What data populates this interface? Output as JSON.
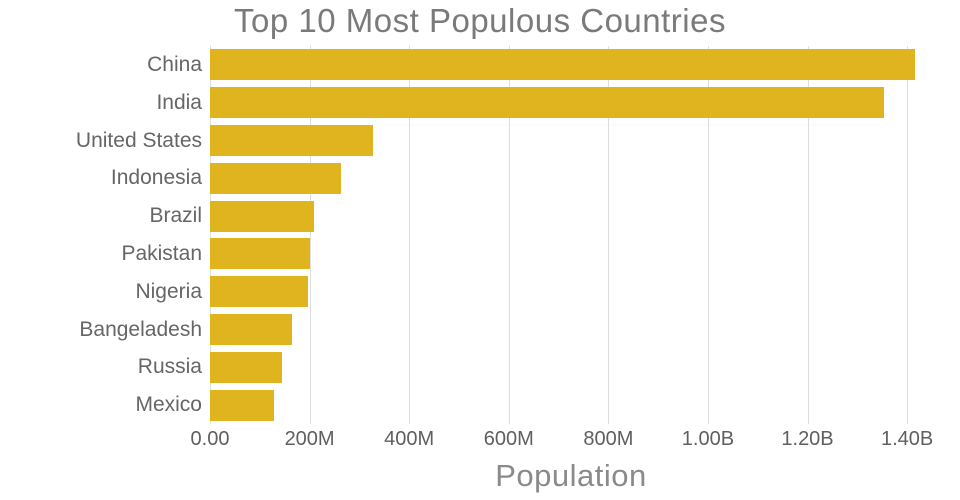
{
  "title": "Top 10 Most Populous Countries",
  "xlabel": "Population",
  "colors": {
    "bar": "#e0b41e",
    "gridline": "#dddddd",
    "title_text": "#7a7a7a",
    "axis_text": "#666666"
  },
  "chart_data": {
    "type": "bar",
    "orientation": "horizontal",
    "title": "Top 10 Most Populous Countries",
    "xlabel": "Population",
    "ylabel": "",
    "grid": true,
    "legend": false,
    "xlim": [
      0,
      1450000000
    ],
    "categories": [
      "China",
      "India",
      "United States",
      "Indonesia",
      "Brazil",
      "Pakistan",
      "Nigeria",
      "Bangeladesh",
      "Russia",
      "Mexico"
    ],
    "values": [
      1415000000,
      1354000000,
      327000000,
      264000000,
      209000000,
      201000000,
      196000000,
      165000000,
      144000000,
      129000000
    ],
    "xticks": [
      {
        "value": 0,
        "label": "0.00"
      },
      {
        "value": 200000000,
        "label": "200M"
      },
      {
        "value": 400000000,
        "label": "400M"
      },
      {
        "value": 600000000,
        "label": "600M"
      },
      {
        "value": 800000000,
        "label": "800M"
      },
      {
        "value": 1000000000,
        "label": "1.00B"
      },
      {
        "value": 1200000000,
        "label": "1.20B"
      },
      {
        "value": 1400000000,
        "label": "1.40B"
      }
    ]
  }
}
